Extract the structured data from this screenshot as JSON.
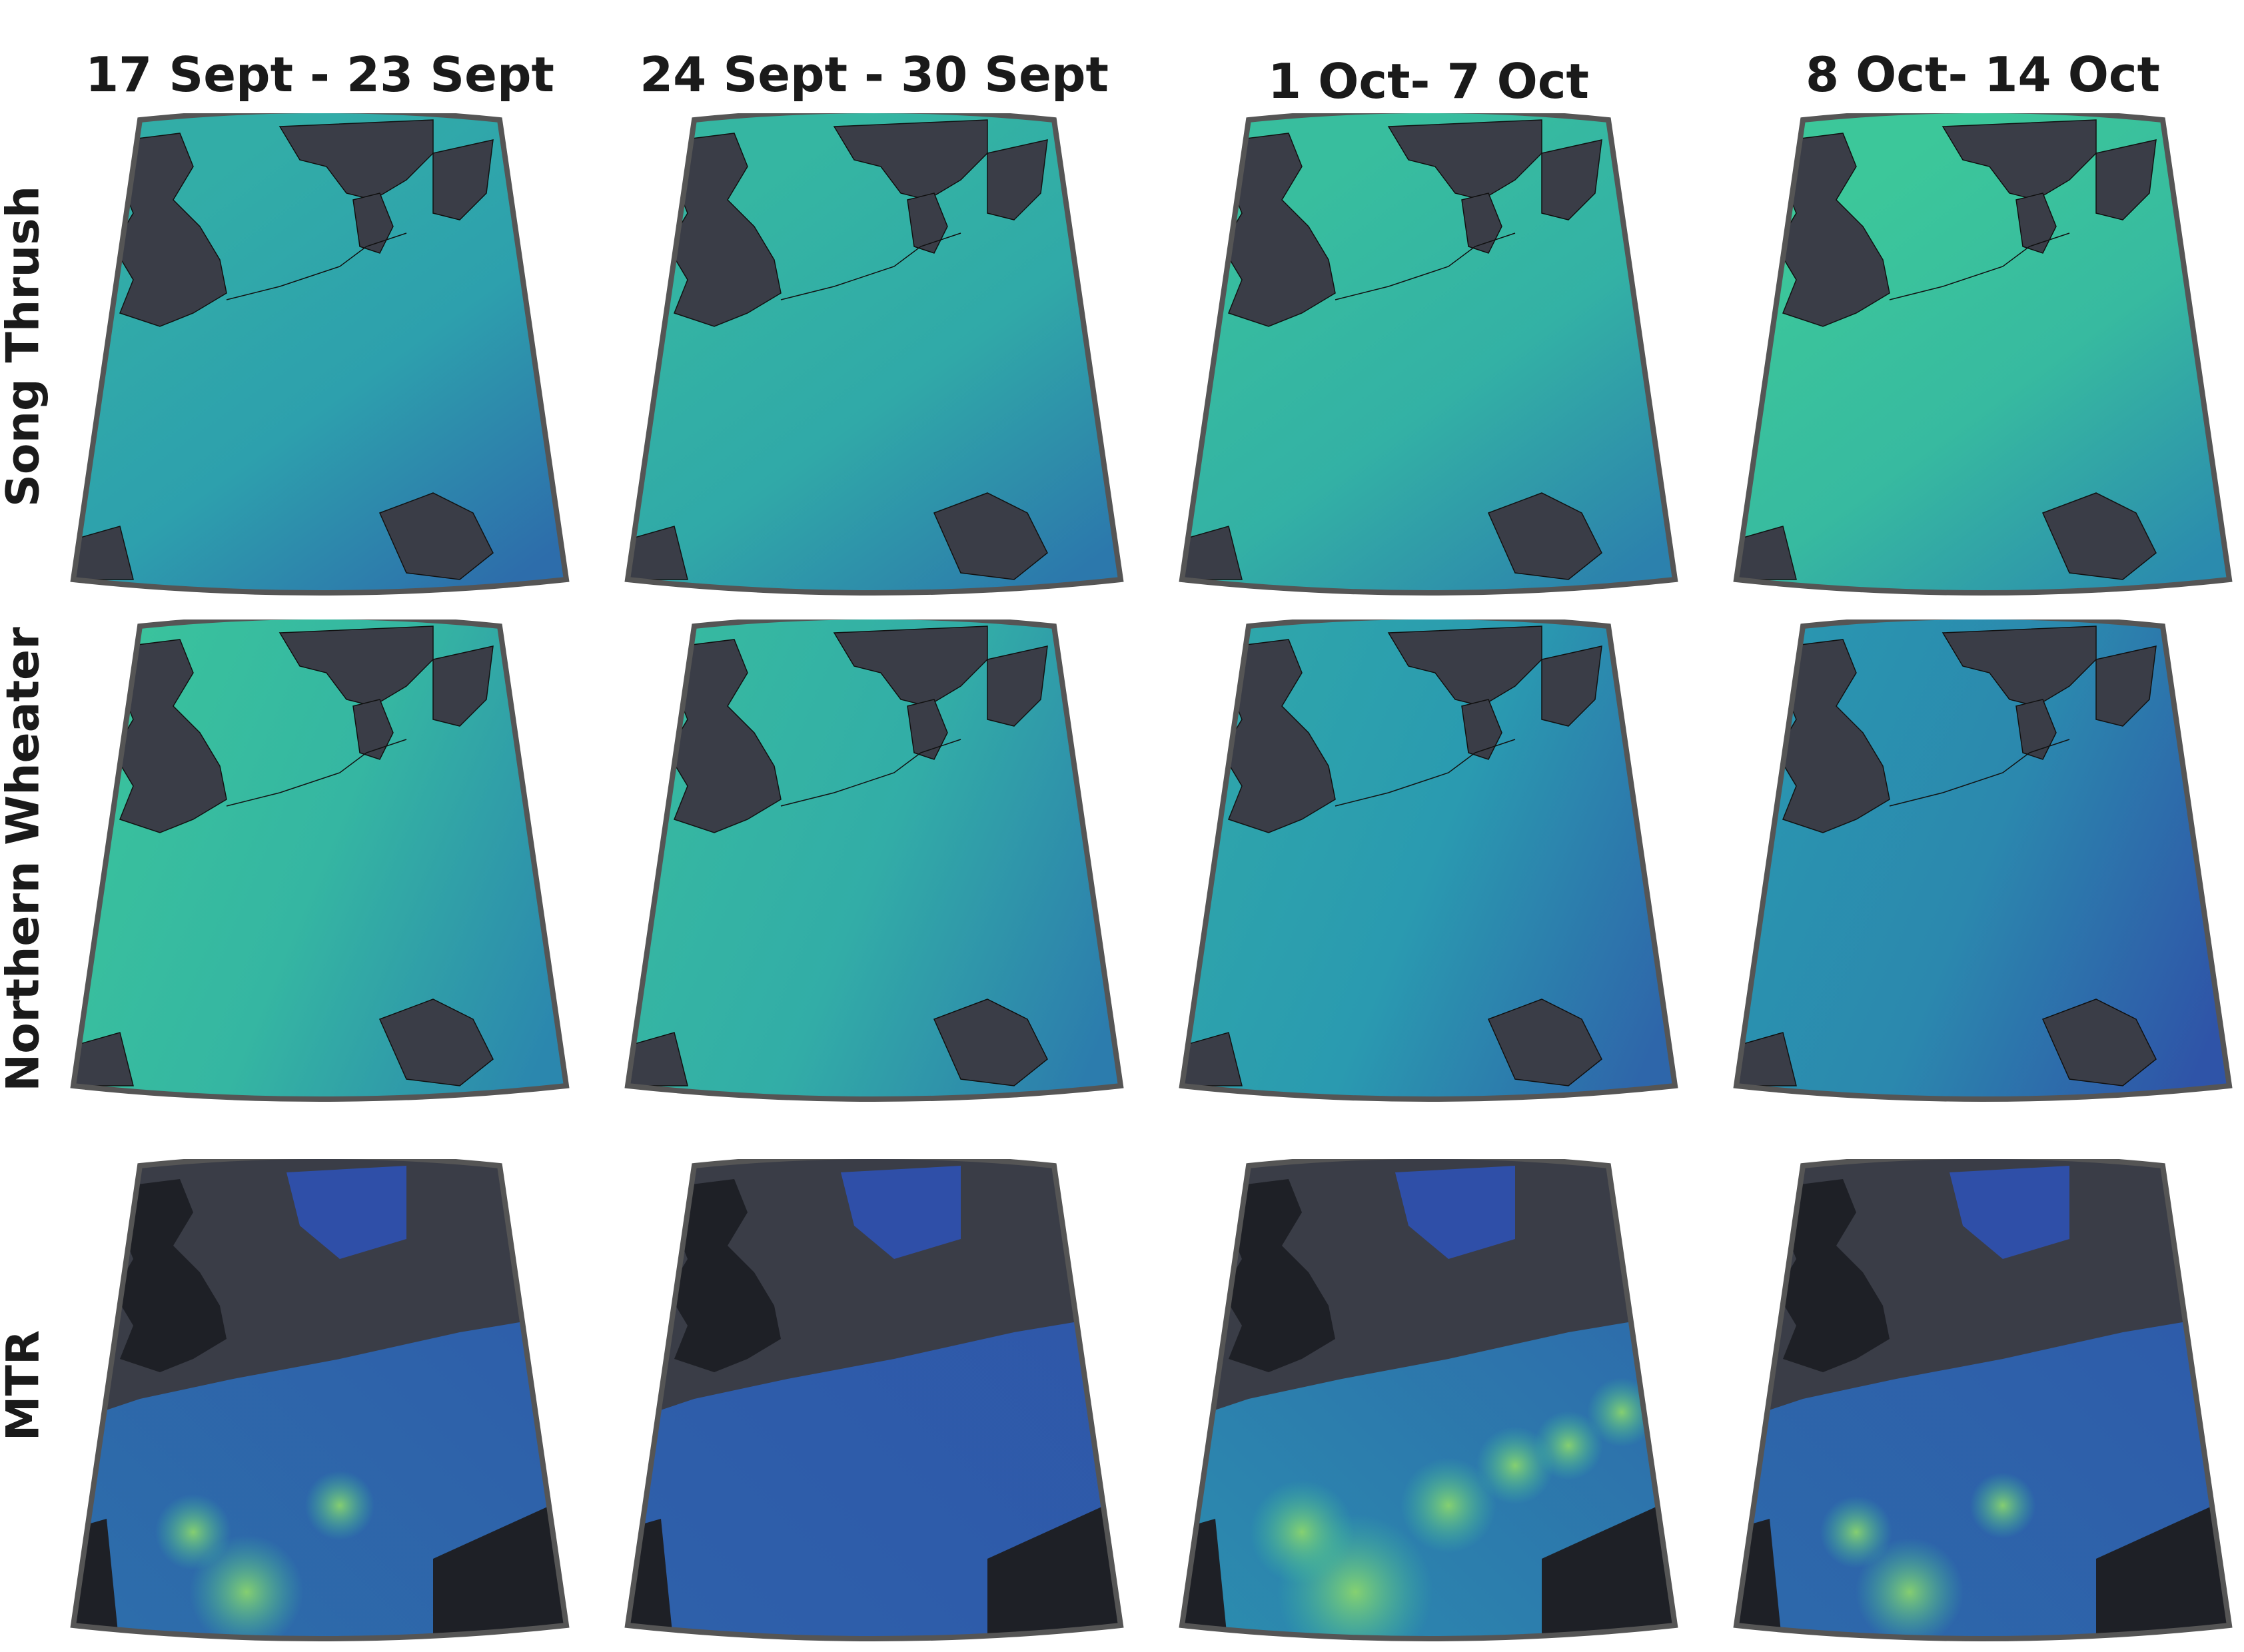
{
  "columns": [
    {
      "title": "17 Sept - 23 Sept"
    },
    {
      "title": "24 Sept - 30 Sept"
    },
    {
      "title": "1 Oct- 7 Oct"
    },
    {
      "title": "8 Oct- 14 Oct"
    }
  ],
  "rows": [
    {
      "label": "Song Thrush",
      "style": "model",
      "panels": [
        {
          "level": 0.55,
          "gradient": "south-east-low"
        },
        {
          "level": 0.62,
          "gradient": "south-east-low"
        },
        {
          "level": 0.68,
          "gradient": "south-east-low"
        },
        {
          "level": 0.75,
          "gradient": "south-east-low"
        }
      ]
    },
    {
      "label": "Northern Wheater",
      "style": "model",
      "panels": [
        {
          "level": 0.72,
          "gradient": "east-low"
        },
        {
          "level": 0.65,
          "gradient": "east-low"
        },
        {
          "level": 0.5,
          "gradient": "east-low"
        },
        {
          "level": 0.38,
          "gradient": "east-low"
        }
      ]
    },
    {
      "label": "MTR",
      "style": "radar",
      "panels": [
        {
          "level": 0.35,
          "hotspots": 3
        },
        {
          "level": 0.2,
          "hotspots": 0
        },
        {
          "level": 0.7,
          "hotspots": 6
        },
        {
          "level": 0.3,
          "hotspots": 3
        }
      ]
    }
  ],
  "colors": {
    "land_mask": "#3a3d47",
    "land_mask_dark": "#1e2026",
    "low": "#2f4fa8",
    "mid": "#2a9ab0",
    "high": "#3cc79a",
    "peak": "#8fd96a",
    "frame": "#555555"
  }
}
